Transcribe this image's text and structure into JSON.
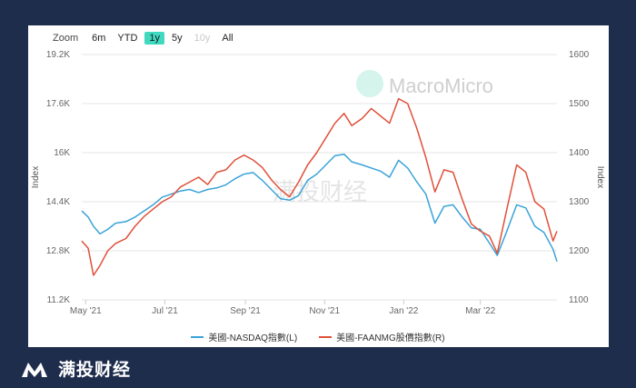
{
  "zoom": {
    "label": "Zoom",
    "buttons": [
      "6m",
      "YTD",
      "1y",
      "5y",
      "10y",
      "All"
    ],
    "active": "1y",
    "disabled": [
      "10y"
    ]
  },
  "watermarks": {
    "macromicro": "MacroMicro",
    "cn": "满投财经"
  },
  "brand": {
    "text": "满投财经"
  },
  "colors": {
    "nasdaq": "#3aa3d8",
    "faanmg": "#e0503a",
    "background": "#1f2d4d",
    "accent": "#3fd9c0"
  },
  "chart_data": {
    "type": "line",
    "x_tick_labels": [
      "May '21",
      "Jul '21",
      "Sep '21",
      "Nov '21",
      "Jan '22",
      "Mar '22"
    ],
    "left_axis": {
      "title": "Index",
      "ticks": [
        "19.2K",
        "17.6K",
        "16K",
        "14.4K",
        "12.8K",
        "11.2K"
      ],
      "ylim": [
        11200,
        19200
      ]
    },
    "right_axis": {
      "title": "Index",
      "ticks": [
        "1600",
        "1500",
        "1400",
        "1300",
        "1200",
        "1100"
      ],
      "ylim": [
        1100,
        1600
      ]
    },
    "grid": true,
    "legend_position": "bottom",
    "series": [
      {
        "name": "美國-NASDAQ指數(L)",
        "axis": "left",
        "x": [
          "2021-04-28",
          "2021-05-03",
          "2021-05-07",
          "2021-05-12",
          "2021-05-18",
          "2021-05-24",
          "2021-06-01",
          "2021-06-08",
          "2021-06-15",
          "2021-06-22",
          "2021-06-29",
          "2021-07-06",
          "2021-07-13",
          "2021-07-20",
          "2021-07-27",
          "2021-08-03",
          "2021-08-10",
          "2021-08-17",
          "2021-08-24",
          "2021-08-31",
          "2021-09-07",
          "2021-09-14",
          "2021-09-21",
          "2021-09-28",
          "2021-10-05",
          "2021-10-12",
          "2021-10-19",
          "2021-10-26",
          "2021-11-02",
          "2021-11-09",
          "2021-11-16",
          "2021-11-22",
          "2021-11-30",
          "2021-12-07",
          "2021-12-14",
          "2021-12-21",
          "2021-12-28",
          "2022-01-04",
          "2022-01-11",
          "2022-01-18",
          "2022-01-25",
          "2022-02-01",
          "2022-02-08",
          "2022-02-15",
          "2022-02-22",
          "2022-03-01",
          "2022-03-08",
          "2022-03-14",
          "2022-03-21",
          "2022-03-29",
          "2022-04-05",
          "2022-04-12",
          "2022-04-19",
          "2022-04-26",
          "2022-04-29"
        ],
        "values": [
          14100,
          13900,
          13600,
          13350,
          13500,
          13700,
          13750,
          13900,
          14100,
          14300,
          14550,
          14650,
          14750,
          14800,
          14700,
          14800,
          14850,
          14950,
          15150,
          15300,
          15350,
          15100,
          14800,
          14500,
          14450,
          14600,
          15100,
          15300,
          15600,
          15900,
          15950,
          15700,
          15600,
          15500,
          15400,
          15200,
          15750,
          15500,
          15050,
          14650,
          13700,
          14250,
          14300,
          13900,
          13550,
          13500,
          13050,
          12650,
          13400,
          14300,
          14200,
          13600,
          13400,
          12850,
          12450
        ]
      },
      {
        "name": "美國-FAANMG股價指數(R)",
        "axis": "right",
        "x": [
          "2021-04-28",
          "2021-05-03",
          "2021-05-07",
          "2021-05-12",
          "2021-05-18",
          "2021-05-24",
          "2021-06-01",
          "2021-06-08",
          "2021-06-15",
          "2021-06-22",
          "2021-06-29",
          "2021-07-06",
          "2021-07-13",
          "2021-07-20",
          "2021-07-27",
          "2021-08-03",
          "2021-08-10",
          "2021-08-17",
          "2021-08-24",
          "2021-08-31",
          "2021-09-07",
          "2021-09-14",
          "2021-09-21",
          "2021-09-28",
          "2021-10-05",
          "2021-10-12",
          "2021-10-19",
          "2021-10-26",
          "2021-11-02",
          "2021-11-09",
          "2021-11-16",
          "2021-11-22",
          "2021-11-30",
          "2021-12-07",
          "2021-12-14",
          "2021-12-21",
          "2021-12-28",
          "2022-01-04",
          "2022-01-11",
          "2022-01-18",
          "2022-01-25",
          "2022-02-01",
          "2022-02-08",
          "2022-02-15",
          "2022-02-22",
          "2022-03-01",
          "2022-03-08",
          "2022-03-14",
          "2022-03-21",
          "2022-03-29",
          "2022-04-05",
          "2022-04-12",
          "2022-04-19",
          "2022-04-26",
          "2022-04-29"
        ],
        "values": [
          1220,
          1205,
          1150,
          1170,
          1200,
          1215,
          1225,
          1250,
          1270,
          1285,
          1300,
          1310,
          1330,
          1340,
          1350,
          1335,
          1360,
          1365,
          1385,
          1395,
          1385,
          1370,
          1345,
          1325,
          1310,
          1340,
          1375,
          1400,
          1430,
          1460,
          1480,
          1455,
          1470,
          1490,
          1475,
          1460,
          1510,
          1500,
          1450,
          1390,
          1320,
          1365,
          1360,
          1305,
          1255,
          1240,
          1230,
          1195,
          1280,
          1375,
          1360,
          1300,
          1285,
          1220,
          1240
        ]
      }
    ]
  }
}
